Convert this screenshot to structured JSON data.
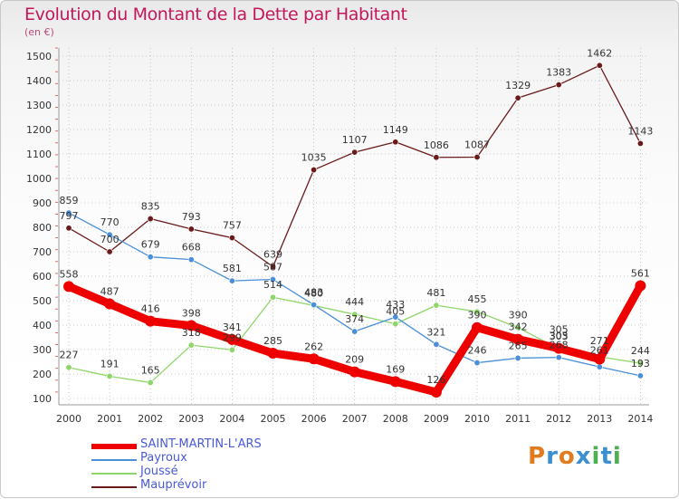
{
  "title": "Evolution du Montant de la Dette par Habitant",
  "subtitle": "(en €)",
  "logo": {
    "text": "Proxiti",
    "letter_colors": [
      "#e07b1e",
      "#3b8fd0",
      "#e07b1e",
      "#3b8fd0",
      "#4caf50",
      "#3b8fd0",
      "#4caf50"
    ]
  },
  "chart_data": {
    "type": "line",
    "title": "Evolution du Montant de la Dette par Habitant",
    "ylabel": "(en €)",
    "xlabel": "",
    "x": [
      "2000",
      "2001",
      "2002",
      "2003",
      "2004",
      "2005",
      "2006",
      "2007",
      "2008",
      "2009",
      "2010",
      "2011",
      "2012",
      "2013",
      "2014"
    ],
    "ylim": [
      100,
      1500
    ],
    "yticks": [
      100,
      200,
      300,
      400,
      500,
      600,
      700,
      800,
      900,
      1000,
      1100,
      1200,
      1300,
      1400,
      1500
    ],
    "grid": true,
    "legend_position": "bottom-left",
    "series": [
      {
        "name": "Mauprévoir",
        "color": "#6b1a1a",
        "width": 1.3,
        "marker": 3.2,
        "values": [
          797,
          700,
          835,
          793,
          757,
          639,
          1035,
          1107,
          1149,
          1086,
          1087,
          1329,
          1383,
          1462,
          1143
        ],
        "labels": [
          "797",
          "700",
          "835",
          "793",
          "757",
          "639",
          "1035",
          "1107",
          "1149",
          "1086",
          "1087",
          "1329",
          "1383",
          "1462",
          "1143"
        ]
      },
      {
        "name": "Joussé",
        "color": "#8ed66a",
        "width": 1.3,
        "marker": 3.2,
        "values": [
          227,
          191,
          165,
          318,
          299,
          514,
          480,
          444,
          405,
          481,
          455,
          390,
          303,
          271,
          244
        ],
        "labels": [
          "227",
          "191",
          "165",
          "318",
          "",
          "514",
          "480",
          "444",
          "405",
          "481",
          "455",
          "390",
          "303",
          "",
          "244"
        ]
      },
      {
        "name": "Payroux",
        "color": "#4a8fd8",
        "width": 1.3,
        "marker": 3.2,
        "values": [
          859,
          770,
          679,
          668,
          581,
          587,
          483,
          374,
          433,
          321,
          246,
          265,
          268,
          229,
          193
        ],
        "labels": [
          "859",
          "770",
          "679",
          "668",
          "581",
          "587",
          "483",
          "374",
          "433",
          "321",
          "246",
          "265",
          "268",
          "",
          "193"
        ]
      },
      {
        "name": "SAINT-MARTIN-L'ARS",
        "color": "#ee0000",
        "width": 9,
        "marker": 6,
        "values": [
          558,
          487,
          416,
          398,
          341,
          285,
          262,
          209,
          169,
          126,
          390,
          342,
          305,
          261,
          561
        ],
        "labels": [
          "558",
          "487",
          "416",
          "398",
          "341",
          "285",
          "262",
          "209",
          "169",
          "126",
          "390",
          "342",
          "305",
          "",
          "561"
        ]
      }
    ],
    "extra_labels": [
      {
        "year": "2004",
        "text": "299"
      },
      {
        "year": "2012",
        "text": "305"
      },
      {
        "year": "2013",
        "text": "271"
      },
      {
        "year": "2013",
        "text": "261"
      }
    ],
    "legend": [
      {
        "label": "SAINT-MARTIN-L'ARS",
        "color": "#ee0000",
        "width": 6
      },
      {
        "label": "Payroux",
        "color": "#4a8fd8",
        "width": 1.5
      },
      {
        "label": "Joussé",
        "color": "#8ed66a",
        "width": 1.5
      },
      {
        "label": "Mauprévoir",
        "color": "#6b1a1a",
        "width": 1.5
      }
    ]
  }
}
